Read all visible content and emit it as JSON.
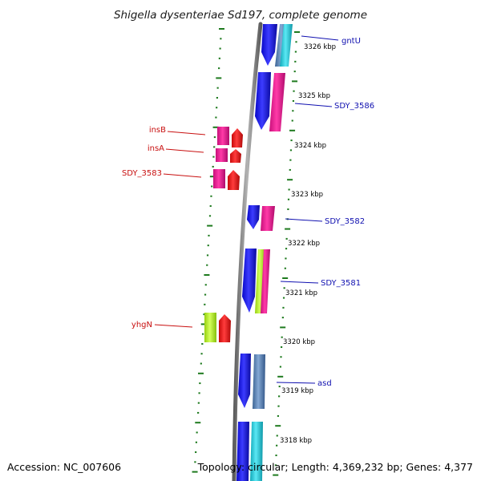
{
  "title": "Shigella dysenteriae Sd197, complete genome",
  "footer": {
    "accession": "Accession: NC_007606",
    "topology": "Topology: circular; Length: 4,369,232 bp; Genes: 4,377"
  },
  "colors": {
    "background": "#ffffff",
    "backbone": "#808080",
    "tick_marks": "#1e7a1e",
    "label_right": "#1010b0",
    "label_left": "#c81010",
    "feature_blue": "#1414e6",
    "feature_magenta": "#e8168c",
    "feature_cyan": "#22c8d8",
    "feature_steel": "#5a82b8",
    "feature_red": "#e61414",
    "feature_lime": "#b4f01e"
  },
  "scale_labels": [
    "3326 kbp",
    "3325 kbp",
    "3324 kbp",
    "3323 kbp",
    "3322 kbp",
    "3321 kbp",
    "3320 kbp",
    "3319 kbp",
    "3318 kbp"
  ],
  "gene_labels_right": [
    "gntU",
    "SDY_3586",
    "SDY_3582",
    "SDY_3581",
    "asd"
  ],
  "gene_labels_left": [
    "insB",
    "insA",
    "SDY_3583",
    "yhgN"
  ]
}
